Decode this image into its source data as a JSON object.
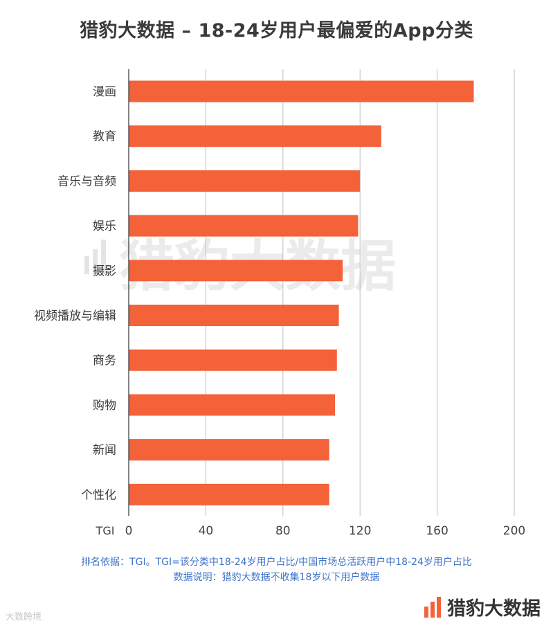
{
  "chart_data": {
    "type": "bar",
    "orientation": "horizontal",
    "title": "猎豹大数据 – 18-24岁用户最偏爱的App分类",
    "x_axis_label": "TGI",
    "categories": [
      "漫画",
      "教育",
      "音乐与音频",
      "娱乐",
      "摄影",
      "视频播放与编辑",
      "商务",
      "购物",
      "新闻",
      "个性化"
    ],
    "values": [
      179,
      131,
      120,
      119,
      111,
      109,
      108,
      107,
      104,
      104
    ],
    "xlim": [
      0,
      200
    ],
    "ticks": [
      0,
      40,
      80,
      120,
      160,
      200
    ],
    "tick_labels": [
      "0",
      "40",
      "80",
      "120",
      "160",
      "200"
    ],
    "grid": true,
    "bar_color": "#f4623a"
  },
  "notes": {
    "line1": "排名依据：TGI。TGI=该分类中18-24岁用户占比/中国市场总活跃用户中18-24岁用户占比",
    "line2": "数据说明：猎豹大数据不收集18岁以下用户数据"
  },
  "watermark": "猎豹大数据",
  "brand": {
    "name": "猎豹大数据",
    "icon": "cheetah-bars-icon",
    "color": "#f4623a"
  },
  "corner_watermark": "大数跨境"
}
